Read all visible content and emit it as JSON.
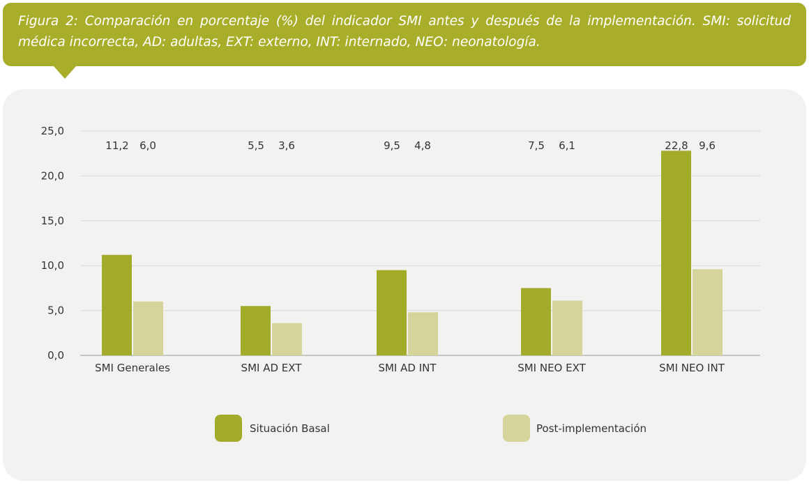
{
  "caption": "Figura 2: Comparación en porcentaje (%) del indicador SMI antes y después de la implementación. SMI: solicitud médica incorrecta, AD: adultas, EXT: externo, INT: internado, NEO: neonatología.",
  "chart_data": {
    "type": "bar",
    "title": "",
    "xlabel": "",
    "ylabel": "",
    "ylim": [
      0,
      25
    ],
    "yticks": [
      "0,0",
      "5,0",
      "10,0",
      "15,0",
      "20,0",
      "25,0"
    ],
    "grid": true,
    "legend_position": "bottom",
    "categories": [
      "SMI Generales",
      "SMI AD EXT",
      "SMI AD INT",
      "SMI NEO EXT",
      "SMI NEO INT"
    ],
    "series": [
      {
        "name": "Situación Basal",
        "color": "#a3ab2a",
        "values": [
          11.2,
          5.5,
          9.5,
          7.5,
          22.8
        ],
        "labels": [
          "11,2",
          "5,5",
          "9,5",
          "7,5",
          "22,8"
        ]
      },
      {
        "name": "Post-implementación",
        "color": "#d5d49b",
        "values": [
          6.0,
          3.6,
          4.8,
          6.1,
          9.6
        ],
        "labels": [
          "6,0",
          "3,6",
          "4,8",
          "6,1",
          "9,6"
        ]
      }
    ]
  }
}
